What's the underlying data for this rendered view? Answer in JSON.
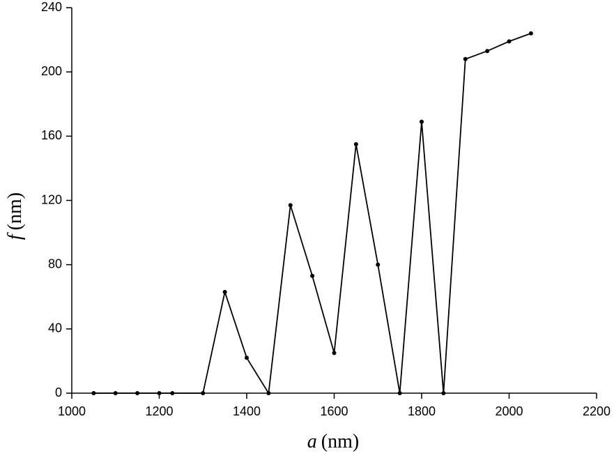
{
  "chart_data": {
    "type": "line",
    "xlabel_symbol": "a",
    "xlabel_unit": "(nm)",
    "ylabel_symbol": "f",
    "ylabel_unit": "(nm)",
    "x": [
      1050,
      1100,
      1150,
      1200,
      1230,
      1300,
      1350,
      1400,
      1450,
      1500,
      1550,
      1600,
      1650,
      1700,
      1750,
      1800,
      1850,
      1900,
      1950,
      2000,
      2050
    ],
    "series": [
      {
        "color": "#000000",
        "values": [
          0,
          0,
          0,
          0,
          0,
          0,
          63,
          22,
          0,
          117,
          73,
          25,
          155,
          80,
          0,
          169,
          0,
          208,
          213,
          219,
          224
        ]
      }
    ],
    "xlim": [
      1000,
      2200
    ],
    "xticks": [
      1000,
      1200,
      1400,
      1600,
      1800,
      2000,
      2200
    ],
    "ylim": [
      0,
      240
    ],
    "yticks": [
      0,
      40,
      80,
      120,
      160,
      200,
      240
    ]
  }
}
